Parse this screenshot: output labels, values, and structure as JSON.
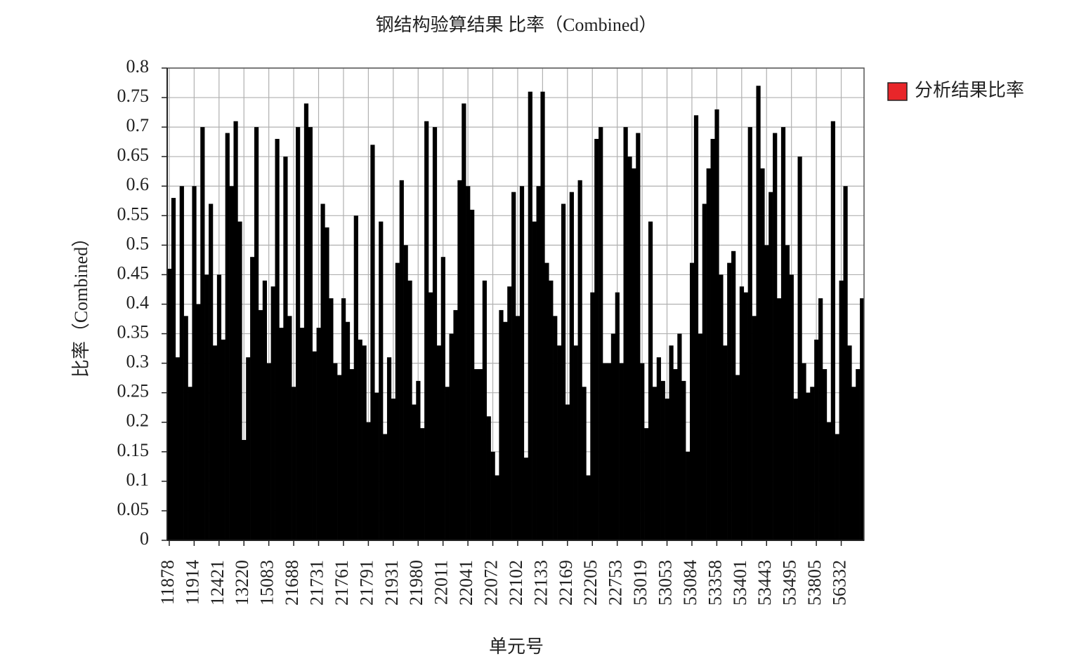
{
  "chart_data": {
    "type": "bar",
    "title": "钢结构验算结果 比率（Combined）",
    "x_label": "单元号",
    "y_label": "比率（Combined）",
    "categories": [
      "11878",
      null,
      null,
      null,
      null,
      null,
      "11914",
      null,
      null,
      null,
      null,
      null,
      "12421",
      null,
      null,
      null,
      null,
      null,
      "13220",
      null,
      null,
      null,
      null,
      null,
      "15083",
      null,
      null,
      null,
      null,
      null,
      "21688",
      null,
      null,
      null,
      null,
      null,
      "21731",
      null,
      null,
      null,
      null,
      null,
      "21761",
      null,
      null,
      null,
      null,
      null,
      "21791",
      null,
      null,
      null,
      null,
      null,
      "21931",
      null,
      null,
      null,
      null,
      null,
      "21980",
      null,
      null,
      null,
      null,
      null,
      "22011",
      null,
      null,
      null,
      null,
      null,
      "22041",
      null,
      null,
      null,
      null,
      null,
      "22072",
      null,
      null,
      null,
      null,
      null,
      "22102",
      null,
      null,
      null,
      null,
      null,
      "22133",
      null,
      null,
      null,
      null,
      null,
      "22169",
      null,
      null,
      null,
      null,
      null,
      "22205",
      null,
      null,
      null,
      null,
      null,
      "22753",
      null,
      null,
      null,
      null,
      null,
      "53019",
      null,
      null,
      null,
      null,
      null,
      "53053",
      null,
      null,
      null,
      null,
      null,
      "53084",
      null,
      null,
      null,
      null,
      null,
      "53358",
      null,
      null,
      null,
      null,
      null,
      "53401",
      null,
      null,
      null,
      null,
      null,
      "53443",
      null,
      null,
      null,
      null,
      null,
      "53495",
      null,
      null,
      null,
      null,
      null,
      "53805",
      null,
      null,
      null,
      null,
      null,
      "56332",
      null,
      null,
      null,
      null,
      null
    ],
    "series": [
      {
        "name": "分析结果比率",
        "color": "#000000",
        "values": [
          0.46,
          0.58,
          0.31,
          0.6,
          0.38,
          0.26,
          0.6,
          0.4,
          0.7,
          0.45,
          0.57,
          0.33,
          0.45,
          0.34,
          0.69,
          0.6,
          0.71,
          0.54,
          0.17,
          0.31,
          0.48,
          0.7,
          0.39,
          0.44,
          0.3,
          0.43,
          0.68,
          0.36,
          0.65,
          0.38,
          0.26,
          0.7,
          0.36,
          0.74,
          0.7,
          0.32,
          0.36,
          0.57,
          0.53,
          0.41,
          0.3,
          0.28,
          0.41,
          0.37,
          0.29,
          0.55,
          0.34,
          0.33,
          0.2,
          0.67,
          0.25,
          0.54,
          0.18,
          0.31,
          0.24,
          0.47,
          0.61,
          0.5,
          0.44,
          0.23,
          0.27,
          0.19,
          0.71,
          0.42,
          0.7,
          0.33,
          0.48,
          0.26,
          0.35,
          0.39,
          0.61,
          0.74,
          0.6,
          0.56,
          0.29,
          0.29,
          0.44,
          0.21,
          0.15,
          0.11,
          0.39,
          0.37,
          0.43,
          0.59,
          0.38,
          0.6,
          0.14,
          0.76,
          0.54,
          0.6,
          0.76,
          0.47,
          0.44,
          0.38,
          0.33,
          0.57,
          0.23,
          0.59,
          0.33,
          0.61,
          0.26,
          0.11,
          0.42,
          0.68,
          0.7,
          0.3,
          0.3,
          0.35,
          0.42,
          0.3,
          0.7,
          0.65,
          0.63,
          0.69,
          0.3,
          0.19,
          0.54,
          0.26,
          0.31,
          0.27,
          0.24,
          0.33,
          0.29,
          0.35,
          0.27,
          0.15,
          0.47,
          0.72,
          0.35,
          0.57,
          0.63,
          0.68,
          0.73,
          0.45,
          0.33,
          0.47,
          0.49,
          0.28,
          0.43,
          0.42,
          0.7,
          0.38,
          0.77,
          0.63,
          0.5,
          0.59,
          0.69,
          0.41,
          0.7,
          0.5,
          0.45,
          0.24,
          0.65,
          0.3,
          0.25,
          0.26,
          0.34,
          0.41,
          0.29,
          0.2,
          0.71,
          0.18,
          0.44,
          0.6,
          0.33,
          0.26,
          0.29,
          0.41
        ]
      }
    ],
    "legend_color": "#e8262a",
    "ylim": [
      0,
      0.8
    ],
    "yticks": [
      0,
      0.05,
      0.1,
      0.15,
      0.2,
      0.25,
      0.3,
      0.35,
      0.4,
      0.45,
      0.5,
      0.55,
      0.6,
      0.65,
      0.7,
      0.75,
      0.8
    ],
    "grid": true
  }
}
